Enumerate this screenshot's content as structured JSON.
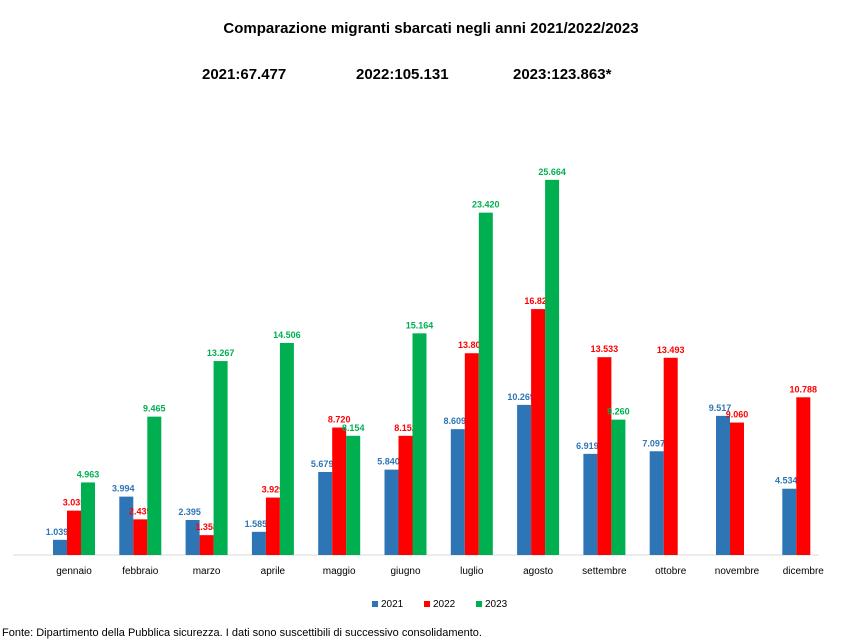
{
  "header": {
    "title": "Comparazione migranti sbarcati negli anni 2021/2022/2023",
    "totals": [
      "2021:67.477",
      "2022:105.131",
      "2023:123.863*"
    ]
  },
  "footer": {
    "source": "Fonte: Dipartimento della Pubblica sicurezza. I dati sono suscettibili di successivo consolidamento."
  },
  "chart_data": {
    "type": "bar",
    "title": "Comparazione migranti sbarcati negli anni 2021/2022/2023",
    "categories": [
      "gennaio",
      "febbraio",
      "marzo",
      "aprile",
      "maggio",
      "giugno",
      "luglio",
      "agosto",
      "settembre",
      "ottobre",
      "novembre",
      "dicembre"
    ],
    "series": [
      {
        "name": "2021",
        "color": "#2e75b6",
        "values": [
          1039,
          3994,
          2395,
          1585,
          5679,
          5840,
          8609,
          10269,
          6919,
          7097,
          9517,
          4534
        ],
        "labels": [
          "1.039",
          "3.994",
          "2.395",
          "1.585",
          "5.679",
          "5.840",
          "8.609",
          "10.269",
          "6.919",
          "7.097",
          "9.517",
          "4.534"
        ]
      },
      {
        "name": "2022",
        "color": "#ff0000",
        "values": [
          3035,
          2439,
          1358,
          3929,
          8720,
          8152,
          13802,
          16822,
          13533,
          13493,
          9060,
          10788
        ],
        "labels": [
          "3.035",
          "2.439",
          "1.358",
          "3.929",
          "8.720",
          "8.152",
          "13.802",
          "16.822",
          "13.533",
          "13.493",
          "9.060",
          "10.788"
        ]
      },
      {
        "name": "2023",
        "color": "#00b050",
        "values": [
          4963,
          9465,
          13267,
          14506,
          8154,
          15164,
          23420,
          25664,
          9260,
          null,
          null,
          null
        ],
        "labels": [
          "4.963",
          "9.465",
          "13.267",
          "14.506",
          "8.154",
          "15.164",
          "23.420",
          "25.664",
          "9.260",
          "",
          "",
          ""
        ]
      }
    ],
    "ylim": [
      0,
      27500
    ],
    "grid": false,
    "legend_position": "bottom"
  }
}
